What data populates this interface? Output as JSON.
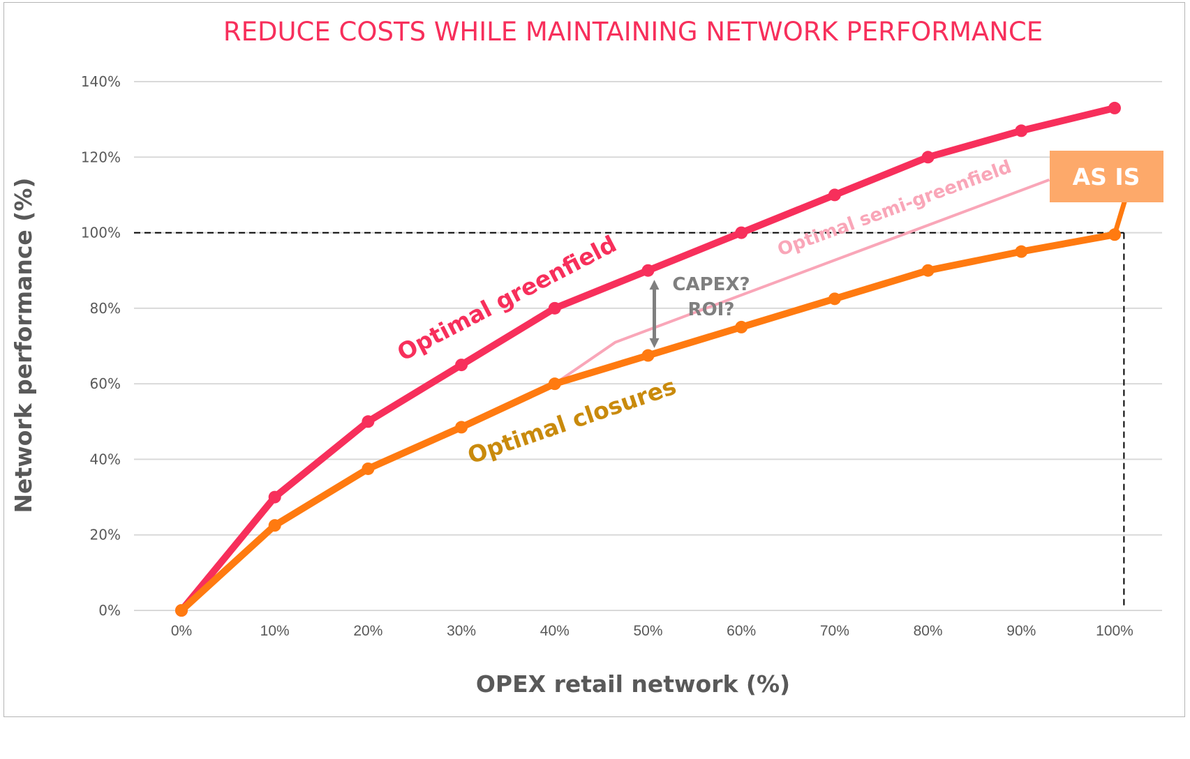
{
  "chart_data": {
    "type": "line",
    "title": "REDUCE COSTS WHILE MAINTAINING NETWORK PERFORMANCE",
    "xlabel": "OPEX retail network (%)",
    "ylabel": "Network performance (%)",
    "x": [
      0,
      10,
      20,
      30,
      40,
      50,
      60,
      70,
      80,
      90,
      100
    ],
    "x_tick_labels": [
      "0%",
      "10%",
      "20%",
      "30%",
      "40%",
      "50%",
      "60%",
      "70%",
      "80%",
      "90%",
      "100%"
    ],
    "y_ticks": [
      0,
      20,
      40,
      60,
      80,
      100,
      120,
      140
    ],
    "y_tick_labels": [
      "0%",
      "20%",
      "40%",
      "60%",
      "80%",
      "100%",
      "120%",
      "140%"
    ],
    "xlim": [
      0,
      100
    ],
    "ylim": [
      0,
      140
    ],
    "grid": "horizontal",
    "legend": "none (inline labels)",
    "series": [
      {
        "name": "Optimal greenfield",
        "color": "#f72f5b",
        "markers": true,
        "values": [
          0,
          30,
          50,
          65,
          80,
          90,
          100,
          110,
          120,
          127,
          133
        ]
      },
      {
        "name": "Optimal closures",
        "color": "#ff7a10",
        "label_color": "#c98a0c",
        "markers": true,
        "values": [
          0,
          22.5,
          37.5,
          48.5,
          60,
          67.5,
          75,
          82.5,
          90,
          95,
          99.5
        ]
      },
      {
        "name": "Optimal semi-greenfield",
        "color": "#f9a6b8",
        "markers": false,
        "points": [
          [
            40,
            60
          ],
          [
            46.5,
            71
          ],
          [
            93,
            114
          ]
        ]
      }
    ],
    "reference_lines": [
      {
        "orientation": "horizontal",
        "value": 100,
        "style": "dashed",
        "color": "#000000",
        "x_to": 101
      },
      {
        "orientation": "vertical",
        "value": 101,
        "style": "dashed",
        "color": "#000000",
        "y_to": 100
      }
    ],
    "annotations": [
      {
        "text_lines": [
          "CAPEX?",
          "ROI?"
        ],
        "type": "double-arrow",
        "x": 50,
        "from": 68,
        "to": 89,
        "color": "#7f7f7f"
      },
      {
        "text": "AS IS",
        "type": "callout-box",
        "color": "#fda96a",
        "text_color": "#ffffff",
        "points_to": [
          100,
          99.5
        ]
      }
    ]
  }
}
